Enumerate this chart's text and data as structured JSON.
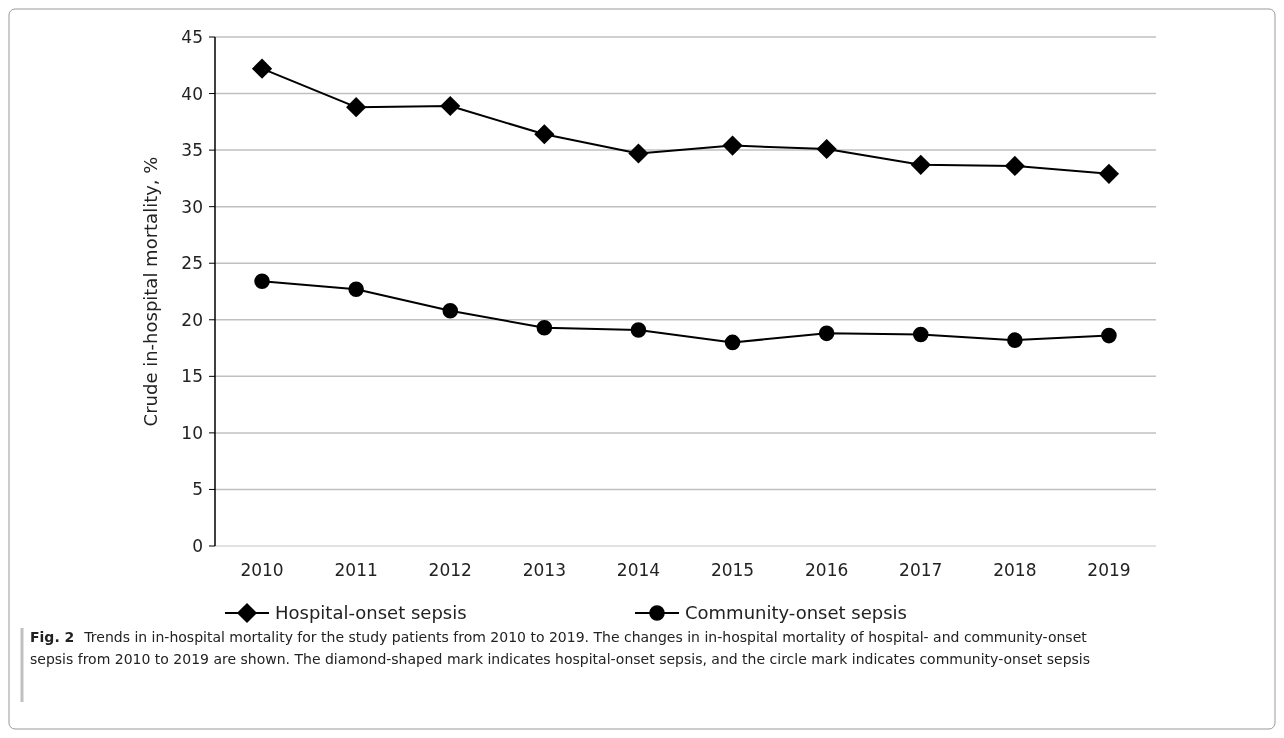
{
  "chart_data": {
    "type": "line",
    "ylabel": "Crude in-hospital mortality, %",
    "categories": [
      "2010",
      "2011",
      "2012",
      "2013",
      "2014",
      "2015",
      "2016",
      "2017",
      "2018",
      "2019"
    ],
    "series": [
      {
        "name": "Hospital-onset sepsis",
        "color": "#000000",
        "marker": "diamond",
        "values": [
          42.2,
          38.8,
          38.9,
          36.4,
          34.7,
          35.4,
          35.1,
          33.7,
          33.6,
          32.9
        ]
      },
      {
        "name": "Community-onset sepsis",
        "color": "#000000",
        "marker": "circle",
        "values": [
          23.4,
          22.7,
          20.8,
          19.3,
          19.1,
          18.0,
          18.8,
          18.7,
          18.2,
          18.6
        ]
      }
    ],
    "ylim": [
      0,
      45
    ],
    "yticks": [
      0,
      5,
      10,
      15,
      20,
      25,
      30,
      35,
      40,
      45
    ],
    "grid": "y",
    "legend": "bottom",
    "line_style": "solid",
    "annotations": [
      "Fig. 2",
      "Trends in in-hospital mortality for the study patients from 2010 to 2019. The changes in in-hospital mortality of hospital- and community-onset sepsis from 2010 to 2019 are shown. The diamond-shaped mark indicates hospital-onset sepsis, and the circle mark indicates community-onset sepsis"
    ]
  }
}
